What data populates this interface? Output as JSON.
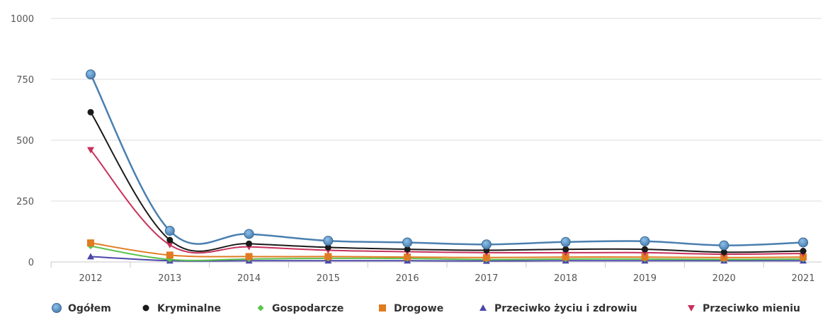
{
  "chart_data": {
    "type": "line",
    "title": "",
    "xlabel": "",
    "ylabel": "",
    "x": [
      "2012",
      "2013",
      "2014",
      "2015",
      "2016",
      "2017",
      "2018",
      "2019",
      "2020",
      "2021"
    ],
    "ylim": [
      0,
      1000
    ],
    "yticks": [
      0,
      250,
      500,
      750,
      1000
    ],
    "yticks_labels": [
      "0",
      "250",
      "500",
      "750",
      "1000"
    ],
    "grid": true,
    "smooth": true,
    "legend_position": "bottom-center",
    "series": [
      {
        "name": "Ogółem",
        "color": "#4a7fb0",
        "marker": "circle-large",
        "values": [
          770,
          128,
          115,
          87,
          80,
          72,
          82,
          85,
          68,
          80
        ]
      },
      {
        "name": "Kryminalne",
        "color": "#1a1a1a",
        "marker": "circle",
        "values": [
          615,
          90,
          75,
          60,
          52,
          48,
          52,
          52,
          40,
          45
        ]
      },
      {
        "name": "Gospodarcze",
        "color": "#5cc24e",
        "marker": "diamond",
        "values": [
          65,
          10,
          12,
          15,
          14,
          10,
          12,
          12,
          10,
          12
        ]
      },
      {
        "name": "Drogowe",
        "color": "#e07b22",
        "marker": "square",
        "values": [
          78,
          28,
          22,
          22,
          20,
          18,
          20,
          20,
          18,
          20
        ]
      },
      {
        "name": "Przeciwko życiu i zdrowiu",
        "color": "#4b47a8",
        "marker": "triangle",
        "values": [
          22,
          5,
          5,
          5,
          5,
          4,
          5,
          5,
          5,
          5
        ]
      },
      {
        "name": "Przeciwko mieniu",
        "color": "#c8315a",
        "marker": "triangle-down",
        "values": [
          460,
          70,
          62,
          48,
          42,
          38,
          38,
          38,
          32,
          35
        ]
      }
    ]
  }
}
